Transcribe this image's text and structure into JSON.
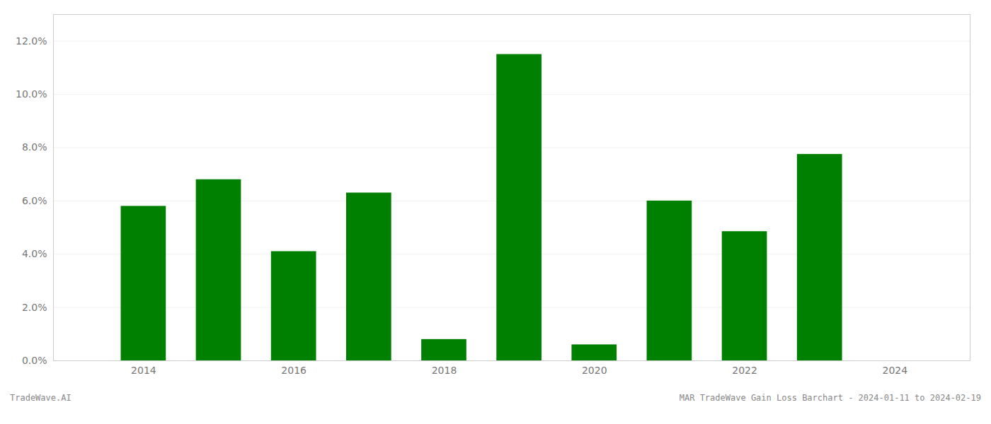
{
  "chart_data": {
    "type": "bar",
    "x": [
      2014,
      2015,
      2016,
      2017,
      2018,
      2019,
      2020,
      2021,
      2022,
      2023
    ],
    "values": [
      0.058,
      0.068,
      0.041,
      0.063,
      0.008,
      0.115,
      0.006,
      0.06,
      0.0485,
      0.0775
    ],
    "color": "#008000",
    "xlim": [
      2012.8,
      2025.0
    ],
    "xticks": [
      2014,
      2016,
      2018,
      2020,
      2022,
      2024
    ],
    "ylim": [
      0,
      0.13
    ],
    "yticks": [
      {
        "value": 0.0,
        "label": "0.0%"
      },
      {
        "value": 0.02,
        "label": "2.0%"
      },
      {
        "value": 0.04,
        "label": "4.0%"
      },
      {
        "value": 0.06,
        "label": "6.0%"
      },
      {
        "value": 0.08,
        "label": "8.0%"
      },
      {
        "value": 0.1,
        "label": "10.0%"
      },
      {
        "value": 0.12,
        "label": "12.0%"
      }
    ],
    "grid": true,
    "annotations": [
      "TradeWave.AI",
      "MAR TradeWave Gain Loss Barchart - 2024-01-11 to 2024-02-19"
    ]
  }
}
